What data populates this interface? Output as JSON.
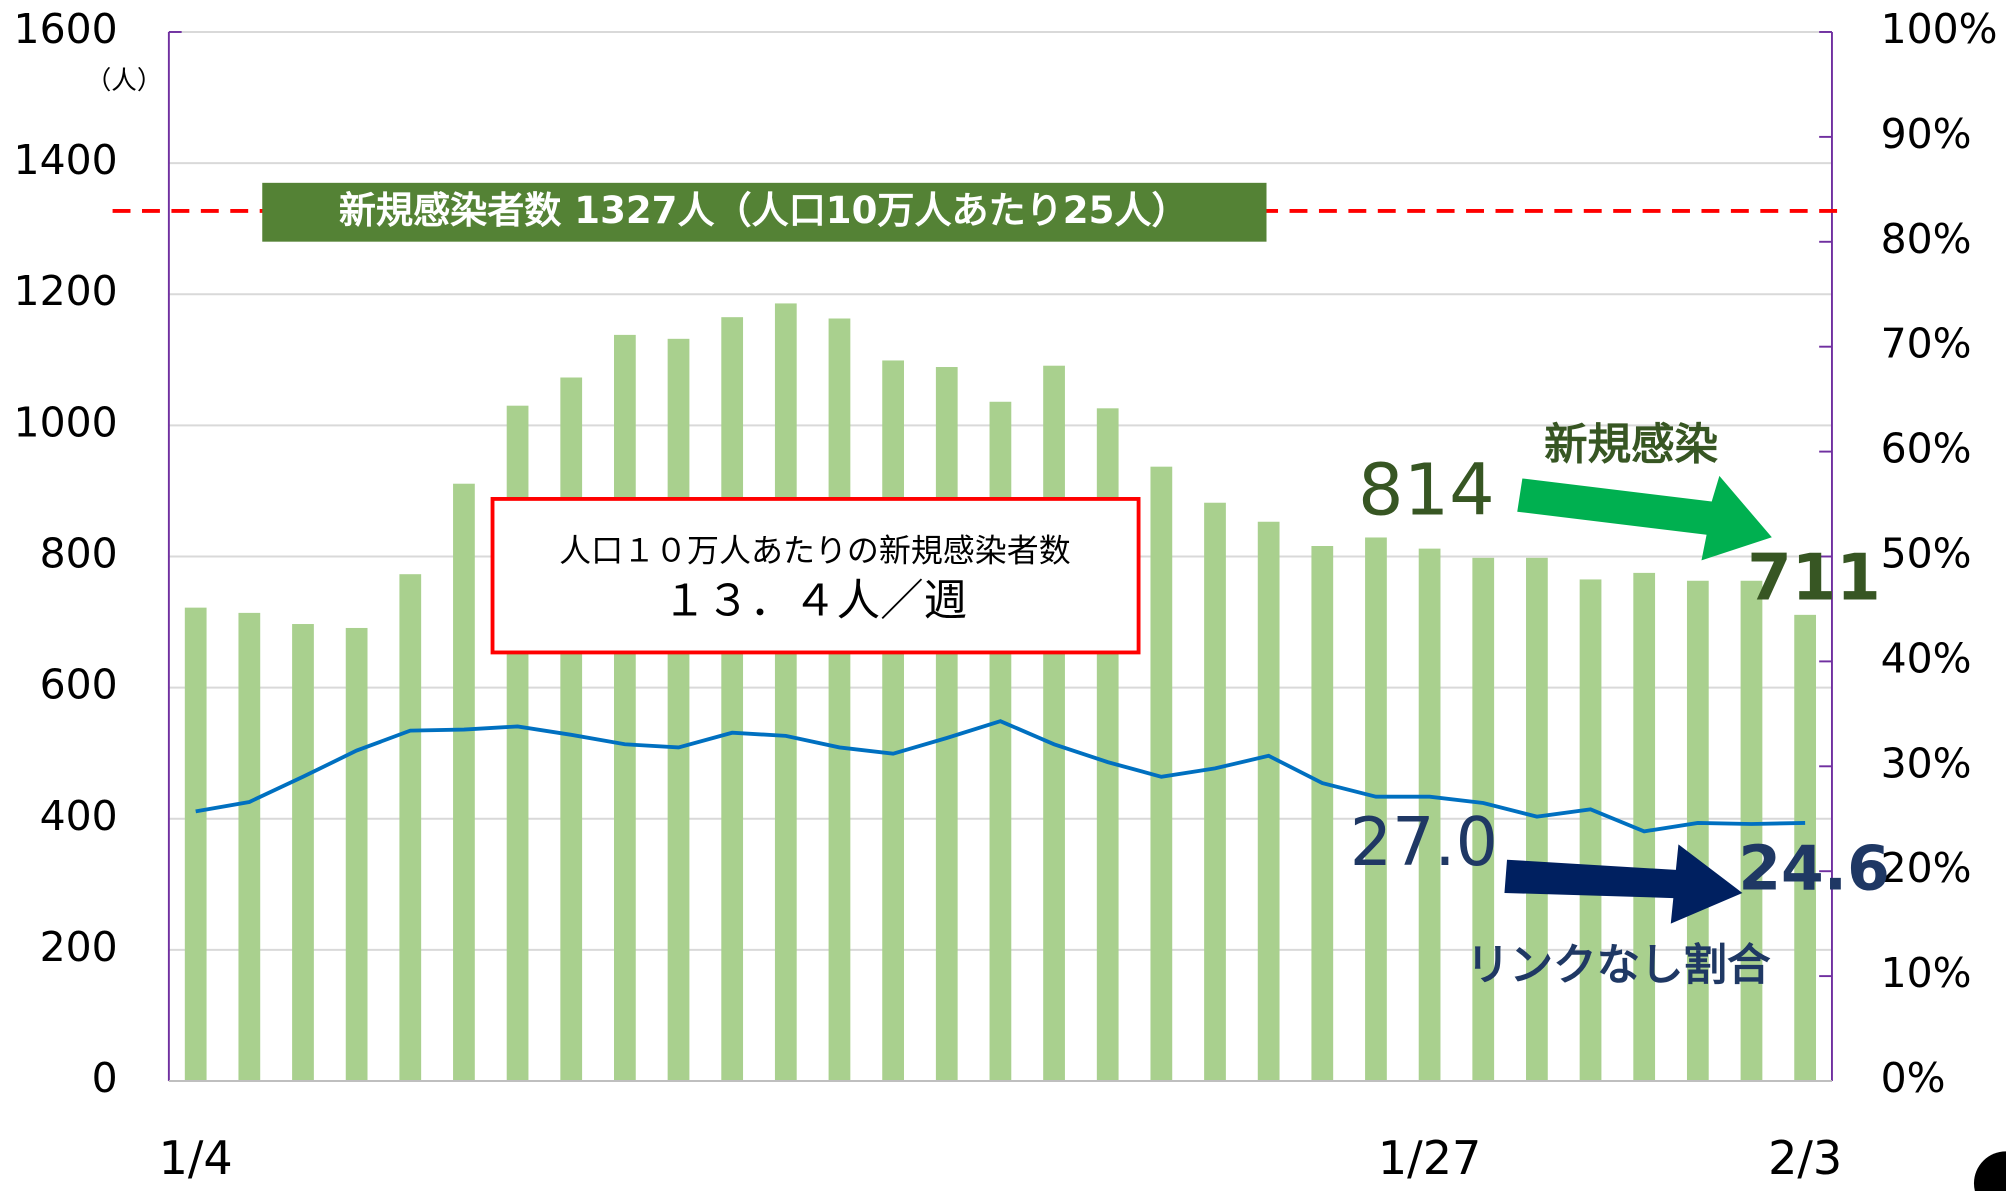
{
  "chart_data": {
    "type": "bar",
    "categories": [
      "1/4",
      null,
      null,
      null,
      null,
      null,
      null,
      null,
      null,
      null,
      null,
      null,
      null,
      null,
      null,
      null,
      null,
      null,
      null,
      null,
      null,
      null,
      null,
      "1/27",
      null,
      null,
      null,
      null,
      null,
      null,
      "2/3"
    ],
    "series": [
      {
        "type": "bar",
        "color": "#a9d08e",
        "values": [
          722,
          714,
          697,
          691,
          773,
          911,
          1030,
          1073,
          1138,
          1132,
          1165,
          1186,
          1163,
          1099,
          1089,
          1036,
          1091,
          1026,
          937,
          882,
          853,
          816,
          829,
          812,
          798,
          798,
          765,
          775,
          763,
          763,
          711
        ]
      },
      {
        "type": "line",
        "axis": "y2",
        "color": "#0070c0",
        "values": [
          25.7,
          26.6,
          29.0,
          31.5,
          33.4,
          33.5,
          33.8,
          33.0,
          32.1,
          31.8,
          33.2,
          32.9,
          31.8,
          31.2,
          32.7,
          34.3,
          32.1,
          30.4,
          29.0,
          29.8,
          31.0,
          28.4,
          27.1,
          27.1,
          26.5,
          25.2,
          25.9,
          23.8,
          24.6,
          24.5,
          24.6
        ]
      }
    ],
    "ylim": [
      0,
      1600
    ],
    "yticks": [
      0,
      200,
      400,
      600,
      800,
      1000,
      1200,
      1400,
      1600
    ],
    "y_unit": "（人）",
    "y2lim": [
      0,
      100
    ],
    "y2ticks": [
      {
        "value": 0,
        "label": "0%"
      },
      {
        "value": 10,
        "label": "10%"
      },
      {
        "value": 20,
        "label": "20%"
      },
      {
        "value": 30,
        "label": "30%"
      },
      {
        "value": 40,
        "label": "40%"
      },
      {
        "value": 50,
        "label": "50%"
      },
      {
        "value": 60,
        "label": "60%"
      },
      {
        "value": 70,
        "label": "70%"
      },
      {
        "value": 80,
        "label": "80%"
      },
      {
        "value": 90,
        "label": "90%"
      },
      {
        "value": 100,
        "label": "100%"
      }
    ],
    "grid": true,
    "reference_line": {
      "value": 1327,
      "label": "新規感染者数 1327人（人口10万人あたり25人）",
      "color": "#ff0000"
    },
    "info_box": [
      "人口１０万人あたりの新規感染者数",
      "１３．４人／週"
    ],
    "annotations": {
      "bar_label": "新規感染",
      "bar_start": "814",
      "bar_end": "711",
      "line_label": "リンクなし割合",
      "line_start": "27.0",
      "line_end": "24.6"
    }
  }
}
